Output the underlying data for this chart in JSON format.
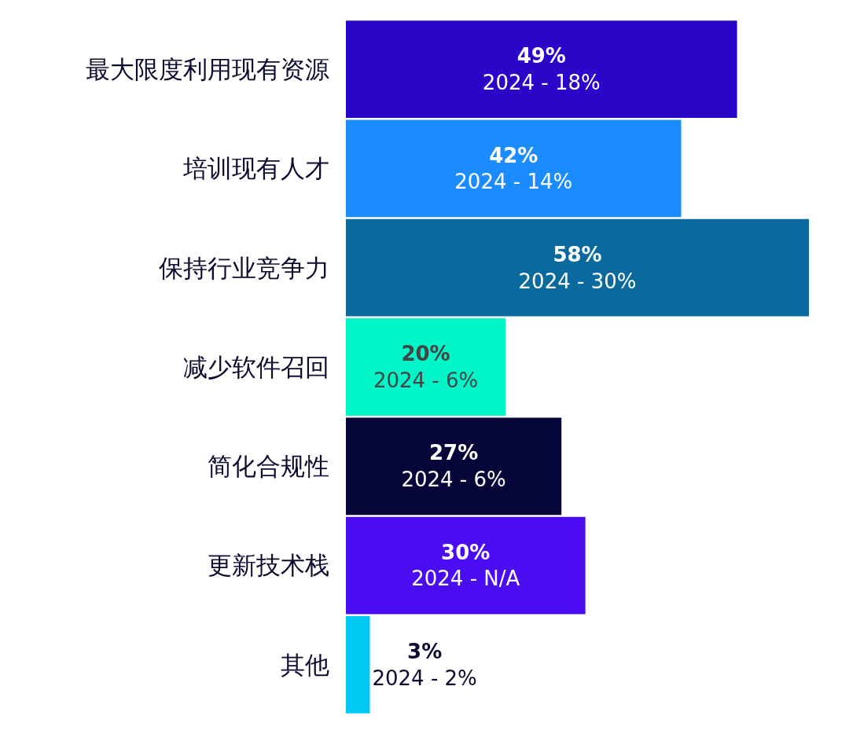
{
  "chart_data": {
    "type": "bar",
    "orientation": "horizontal",
    "tick_labels": "y",
    "grid": false,
    "legend": false,
    "categories": [
      "最大限度利用现有资源",
      "培训现有人才",
      "保持行业竞争力",
      "减少软件召回",
      "简化合规性",
      "更新技术栈",
      "其他"
    ],
    "values": [
      49,
      42,
      58,
      20,
      27,
      30,
      3
    ],
    "colors": [
      "#2a06c8",
      "#1a8cff",
      "#0a6a9e",
      "#00f5c8",
      "#05053a",
      "#4a0cf0",
      "#00c8f5"
    ],
    "value_labels": [
      "49%\n2024 - 18%",
      "42%\n2024 - 14%",
      "58%\n2024 - 30%",
      "20%\n2024 - 6%",
      "27%\n2024 - 6%",
      "30%\n2024 - N/A",
      "3%\n2024 - 2%"
    ]
  }
}
